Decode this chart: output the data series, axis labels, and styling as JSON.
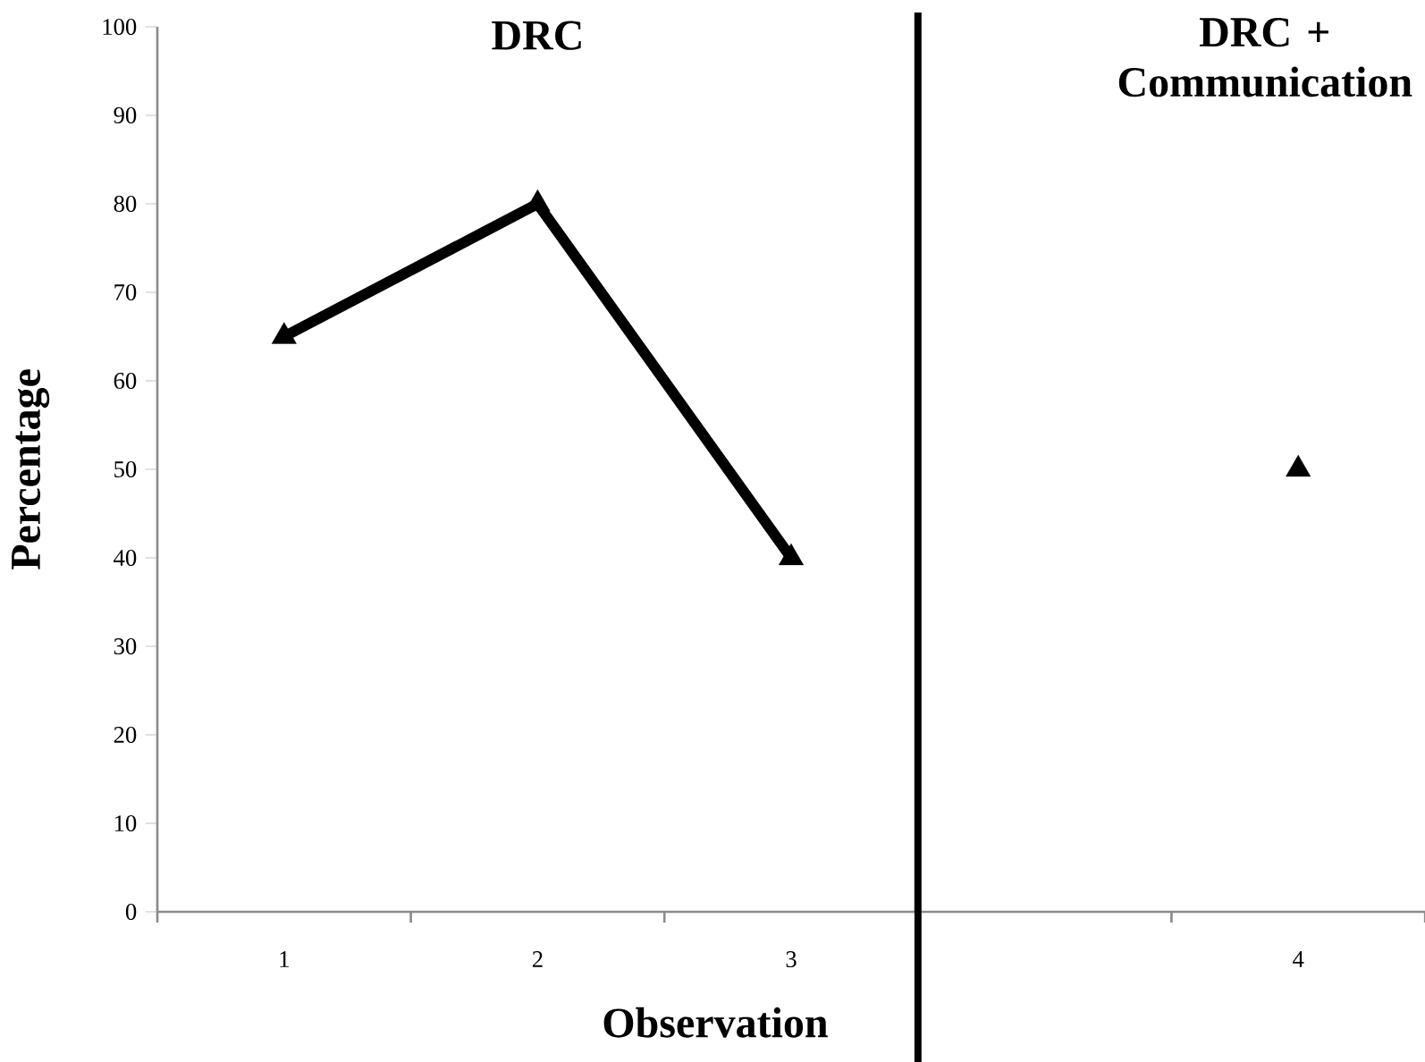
{
  "chart_data": {
    "type": "line",
    "xlabel": "Observation",
    "ylabel": "Percentage",
    "categories": [
      "1",
      "2",
      "3",
      null,
      "4"
    ],
    "series": [
      {
        "color": "#000000",
        "values": [
          65,
          80,
          40,
          null,
          50
        ]
      }
    ],
    "marker": "triangle",
    "line_style": "solid",
    "ylim": [
      0,
      100
    ],
    "yticks": [
      0,
      10,
      20,
      30,
      40,
      50,
      60,
      70,
      80,
      90,
      100
    ],
    "annotations": [
      "DRC",
      "DRC + Communication"
    ]
  }
}
